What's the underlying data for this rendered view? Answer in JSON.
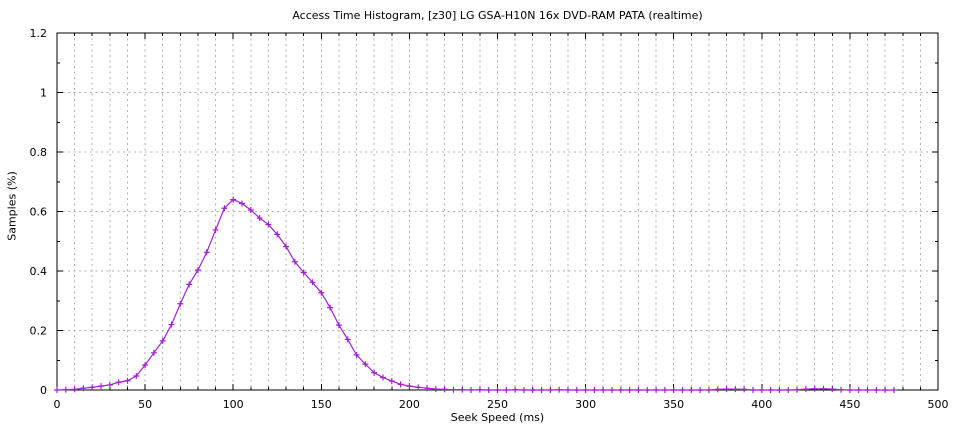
{
  "figure": {
    "background": "#ffffff"
  },
  "chart_data": {
    "type": "line",
    "title": "Access Time Histogram, [z30] LG GSA-H10N 16x DVD-RAM PATA (realtime)",
    "xlabel": "Seek Speed (ms)",
    "ylabel": "Samples (%)",
    "xlim": [
      0,
      500
    ],
    "ylim": [
      0,
      1.2
    ],
    "legend": "none",
    "marker": "plus",
    "line_color": "#a020d0",
    "grid_color": "#b0b0b0",
    "axis_color": "#000000",
    "grid": "dashed; vertical line every 10 ms, horizontal line every 0.2 %",
    "xticks": [
      0,
      50,
      100,
      150,
      200,
      250,
      300,
      350,
      400,
      450,
      500
    ],
    "yticks": [
      "0",
      "0.2",
      "0.4",
      "0.6",
      "0.8",
      "1",
      "1.2"
    ],
    "x_minor_step": 10,
    "y_minor_step": 0.1,
    "x": [
      0,
      5,
      10,
      15,
      20,
      25,
      30,
      35,
      40,
      45,
      50,
      55,
      60,
      65,
      70,
      75,
      80,
      85,
      90,
      95,
      100,
      105,
      110,
      115,
      120,
      125,
      130,
      135,
      140,
      145,
      150,
      155,
      160,
      165,
      170,
      175,
      180,
      185,
      190,
      195,
      200,
      205,
      210,
      215,
      220,
      225,
      230,
      235,
      240,
      245,
      250,
      255,
      260,
      265,
      270,
      275,
      280,
      285,
      290,
      295,
      300,
      305,
      310,
      315,
      320,
      325,
      330,
      335,
      340,
      345,
      350,
      355,
      360,
      365,
      370,
      375,
      380,
      385,
      390,
      395,
      400,
      405,
      410,
      415,
      420,
      425,
      430,
      435,
      440,
      445,
      450,
      455,
      460,
      465,
      470,
      475
    ],
    "values": [
      0,
      0.001,
      0.002,
      0.006,
      0.009,
      0.013,
      0.017,
      0.026,
      0.031,
      0.047,
      0.084,
      0.125,
      0.165,
      0.22,
      0.29,
      0.355,
      0.403,
      0.463,
      0.538,
      0.611,
      0.64,
      0.627,
      0.605,
      0.578,
      0.556,
      0.523,
      0.482,
      0.431,
      0.395,
      0.362,
      0.327,
      0.277,
      0.218,
      0.17,
      0.118,
      0.087,
      0.058,
      0.042,
      0.03,
      0.019,
      0.013,
      0.009,
      0.006,
      0.003,
      0.002,
      0.001,
      0.001,
      0,
      0.001,
      0,
      0,
      0,
      0.001,
      0,
      0,
      0,
      0,
      0.001,
      0,
      0,
      0,
      0,
      0,
      0,
      0,
      0,
      0,
      0,
      0,
      0,
      0,
      0,
      0,
      0,
      0,
      0.002,
      0.003,
      0.003,
      0.002,
      0,
      0,
      0,
      0,
      0,
      0.001,
      0.003,
      0.004,
      0.004,
      0.003,
      0.001,
      0,
      0,
      0,
      0,
      0,
      0
    ]
  }
}
